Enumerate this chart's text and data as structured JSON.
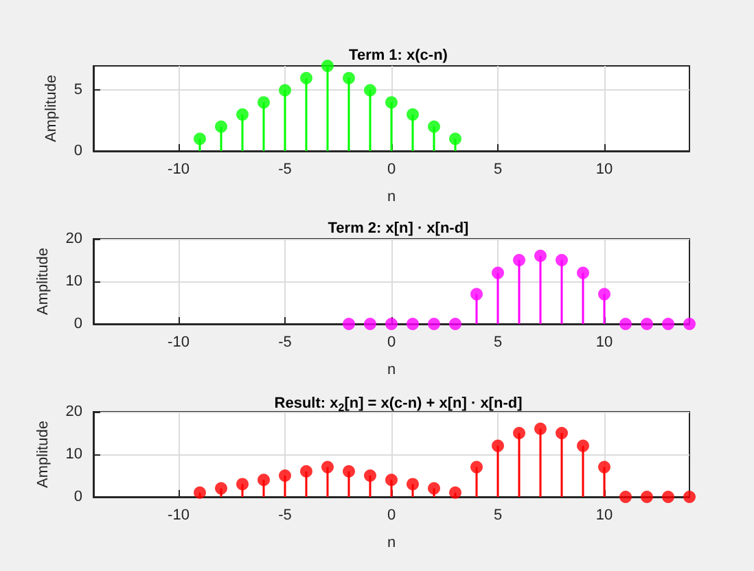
{
  "chart_data": [
    {
      "type": "lollipop",
      "title": "Term 1: x(c-n)",
      "xlabel": "n",
      "ylabel": "Amplitude",
      "x": [
        -9,
        -8,
        -7,
        -6,
        -5,
        -4,
        -3,
        -2,
        -1,
        0,
        1,
        2,
        3
      ],
      "values": [
        1,
        2,
        3,
        4,
        5,
        6,
        7,
        6,
        5,
        4,
        3,
        2,
        1
      ],
      "color": "#00ff00",
      "marker": "circle",
      "xlim": [
        -14,
        14
      ],
      "xticks": [
        -10,
        -5,
        0,
        5,
        10
      ],
      "ylim": [
        0,
        7
      ],
      "yticks": [
        0,
        5
      ],
      "grid": true
    },
    {
      "type": "lollipop",
      "title": "Term 2: x[n] · x[n-d]",
      "xlabel": "n",
      "ylabel": "Amplitude",
      "x": [
        -2,
        -1,
        0,
        1,
        2,
        3,
        4,
        5,
        6,
        7,
        8,
        9,
        10,
        11,
        12,
        13,
        14
      ],
      "values": [
        0,
        0,
        0,
        0,
        0,
        0,
        7,
        12,
        15,
        16,
        15,
        12,
        7,
        0,
        0,
        0,
        0
      ],
      "color": "#ff00ff",
      "marker": "circle",
      "xlim": [
        -14,
        14
      ],
      "xticks": [
        -10,
        -5,
        0,
        5,
        10
      ],
      "ylim": [
        0,
        20
      ],
      "yticks": [
        0,
        10,
        20
      ],
      "grid": true
    },
    {
      "type": "lollipop",
      "title": "Result: x$_{2}$[n] = x(c-n) + x[n] · x[n-d]",
      "xlabel": "n",
      "ylabel": "Amplitude",
      "x": [
        -9,
        -8,
        -7,
        -6,
        -5,
        -4,
        -3,
        -2,
        -1,
        0,
        1,
        2,
        3,
        4,
        5,
        6,
        7,
        8,
        9,
        10,
        11,
        12,
        13,
        14
      ],
      "values": [
        1,
        2,
        3,
        4,
        5,
        6,
        7,
        6,
        5,
        4,
        3,
        2,
        1,
        7,
        12,
        15,
        16,
        15,
        12,
        7,
        0,
        0,
        0,
        0
      ],
      "color": "#ff0000",
      "marker": "circle",
      "xlim": [
        -14,
        14
      ],
      "xticks": [
        -10,
        -5,
        0,
        5,
        10
      ],
      "ylim": [
        0,
        20
      ],
      "yticks": [
        0,
        10,
        20
      ],
      "grid": true
    }
  ]
}
